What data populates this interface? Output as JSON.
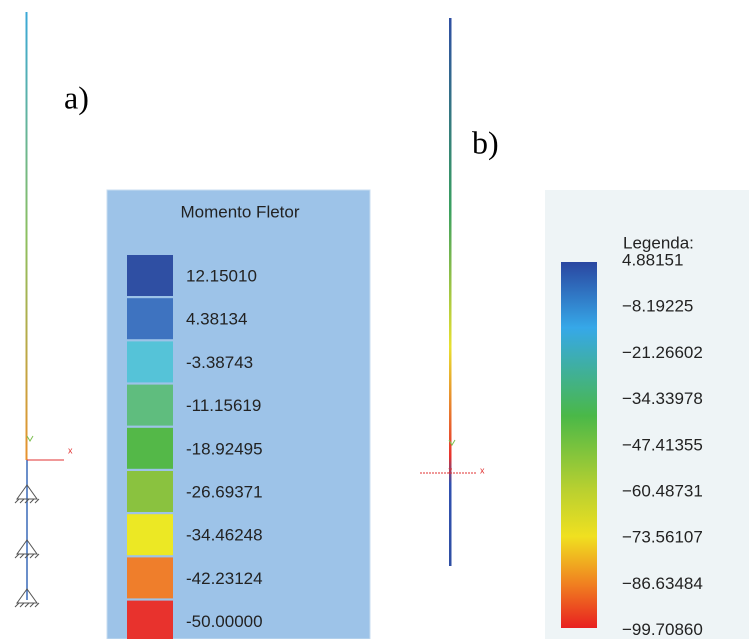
{
  "panel_a": {
    "label": "a)",
    "axis_label": "x",
    "legend": {
      "title": "Momento Fletor",
      "entries": [
        "12.15010",
        "4.38134",
        "-3.38743",
        "-11.15619",
        "-18.92495",
        "-26.69371",
        "-34.46248",
        "-42.23124",
        "-50.00000"
      ],
      "colors": [
        "#2f4fa3",
        "#3e73c0",
        "#55c3d8",
        "#5fbd7e",
        "#54b848",
        "#8ac23f",
        "#ece824",
        "#ef7e2b",
        "#e8322d"
      ]
    }
  },
  "panel_b": {
    "label": "b)",
    "axis_labels": [
      "z",
      "x"
    ],
    "legend": {
      "title": "Legenda:",
      "entries": [
        "4.88151",
        "−8.19225",
        "−21.26602",
        "−34.33978",
        "−47.41355",
        "−60.48731",
        "−73.56107",
        "−86.63484",
        "−99.70860"
      ]
    }
  }
}
